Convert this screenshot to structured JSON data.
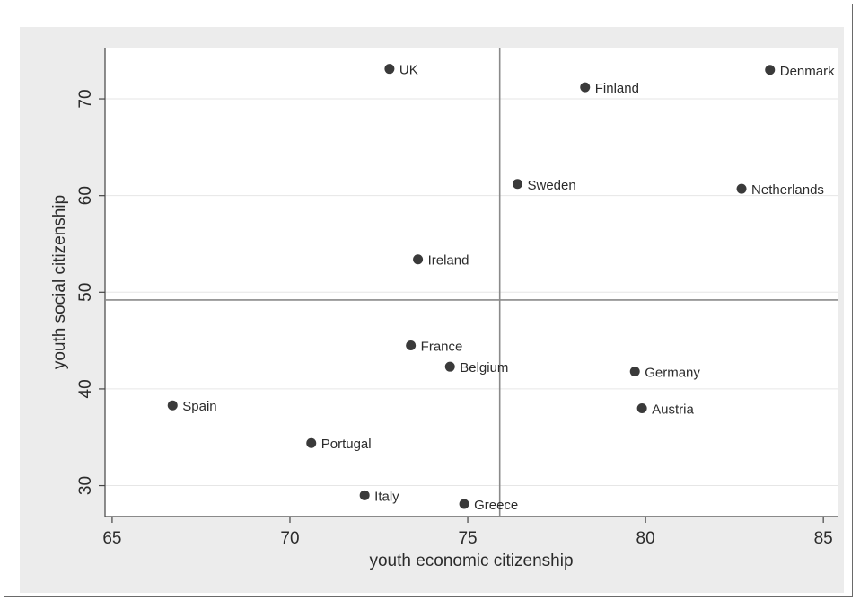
{
  "chart_data": {
    "type": "scatter",
    "title": "",
    "xlabel": "youth economic citizenship",
    "ylabel": "youth social citizenship",
    "xlim": [
      64.8,
      85.4
    ],
    "ylim": [
      26.8,
      75.3
    ],
    "xticks": [
      "65",
      "70",
      "75",
      "80",
      "85"
    ],
    "yticks": [
      "30",
      "40",
      "50",
      "60",
      "70"
    ],
    "grid": true,
    "reference_lines": {
      "x": 75.9,
      "y": 49.2
    },
    "colors": {
      "point": "#3a3a3a",
      "reference_line": "#8a8a8a",
      "grid": "#e6e6e6",
      "panel": "#ececec",
      "axis": "#444444"
    },
    "points": [
      {
        "label": "UK",
        "x": 72.8,
        "y": 73.1
      },
      {
        "label": "Denmark",
        "x": 83.5,
        "y": 73.0
      },
      {
        "label": "Finland",
        "x": 78.3,
        "y": 71.2
      },
      {
        "label": "Sweden",
        "x": 76.4,
        "y": 61.2
      },
      {
        "label": "Netherlands",
        "x": 82.7,
        "y": 60.7
      },
      {
        "label": "Ireland",
        "x": 73.6,
        "y": 53.4
      },
      {
        "label": "France",
        "x": 73.4,
        "y": 44.5
      },
      {
        "label": "Belgium",
        "x": 74.5,
        "y": 42.3
      },
      {
        "label": "Germany",
        "x": 79.7,
        "y": 41.8
      },
      {
        "label": "Spain",
        "x": 66.7,
        "y": 38.3
      },
      {
        "label": "Austria",
        "x": 79.9,
        "y": 38.0
      },
      {
        "label": "Portugal",
        "x": 70.6,
        "y": 34.4
      },
      {
        "label": "Italy",
        "x": 72.1,
        "y": 29.0
      },
      {
        "label": "Greece",
        "x": 74.9,
        "y": 28.1
      }
    ]
  }
}
